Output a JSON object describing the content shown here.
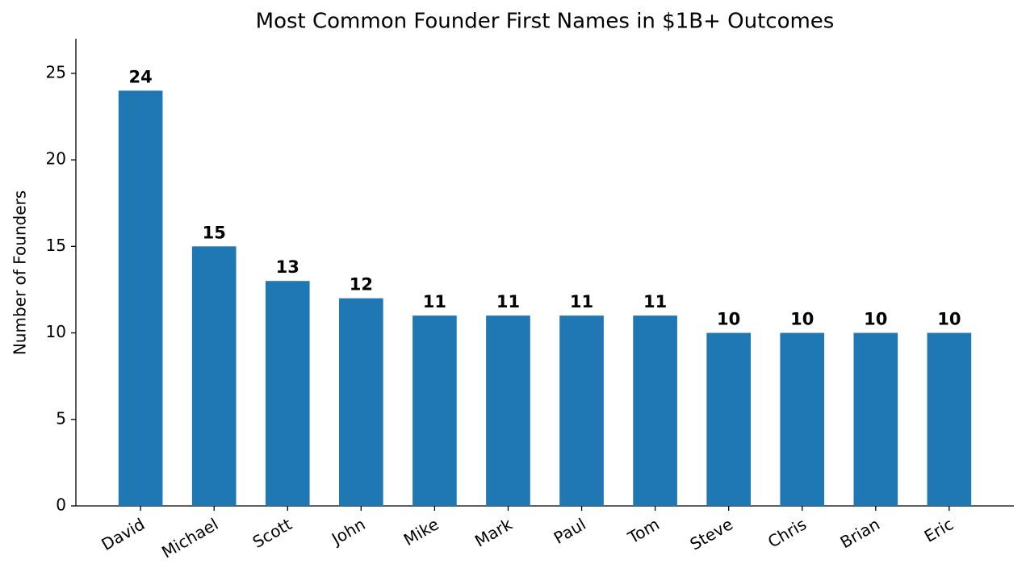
{
  "chart_data": {
    "type": "bar",
    "title": "Most Common Founder First Names in $1B+ Outcomes",
    "y_label": "Number of Founders",
    "categories": [
      "David",
      "Michael",
      "Scott",
      "John",
      "Mike",
      "Mark",
      "Paul",
      "Tom",
      "Steve",
      "Chris",
      "Brian",
      "Eric"
    ],
    "values": [
      24,
      15,
      13,
      12,
      11,
      11,
      11,
      11,
      10,
      10,
      10,
      10
    ],
    "color": "#1f77b4",
    "ylim": [
      0,
      27
    ],
    "yticks": [
      0,
      5,
      10,
      15,
      20,
      25
    ],
    "grid": false
  }
}
